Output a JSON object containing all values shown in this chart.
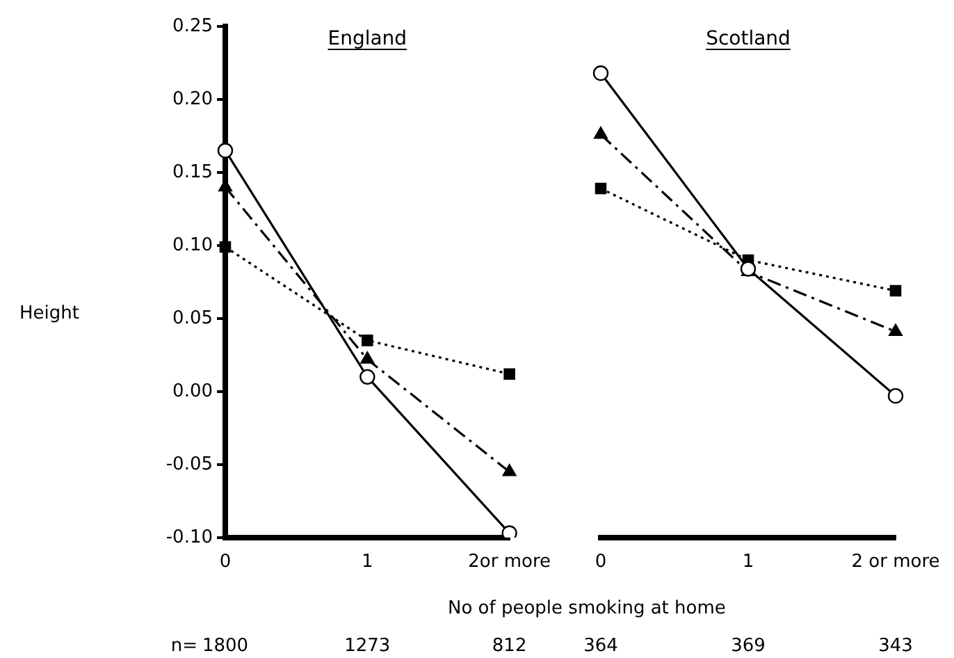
{
  "chart_data": [
    {
      "type": "line",
      "title": "England",
      "ylabel": "Height",
      "xlabel": "No of people smoking at home",
      "categories": [
        "0",
        "1",
        "2or more"
      ],
      "ylim": [
        -0.1,
        0.25
      ],
      "yticks": [
        {
          "value": -0.1,
          "label": "-0.10"
        },
        {
          "value": -0.05,
          "label": "-0.05"
        },
        {
          "value": 0,
          "label": "0.00"
        },
        {
          "value": 0.05,
          "label": "0.05"
        },
        {
          "value": 0.1,
          "label": "0.10"
        },
        {
          "value": 0.15,
          "label": "0.15"
        },
        {
          "value": 0.2,
          "label": "0.20"
        },
        {
          "value": 0.25,
          "label": "0.25"
        }
      ],
      "grid": false,
      "legend": false,
      "series": [
        {
          "color": "#000000",
          "marker": "circle",
          "line_style": "solid",
          "values": [
            0.165,
            0.01,
            -0.097
          ]
        },
        {
          "color": "#000000",
          "marker": "triangle",
          "line_style": "dashed",
          "values": [
            0.14,
            0.022,
            -0.055
          ]
        },
        {
          "color": "#000000",
          "marker": "square",
          "line_style": "dotted",
          "values": [
            0.099,
            0.035,
            0.012
          ]
        }
      ],
      "annotations": [
        "n=",
        "1800",
        "1273",
        "812"
      ]
    },
    {
      "type": "line",
      "title": "Scotland",
      "categories": [
        "0",
        "1",
        "2 or more"
      ],
      "ylim": [
        -0.1,
        0.25
      ],
      "tick_labels": "x",
      "grid": false,
      "legend": false,
      "series": [
        {
          "color": "#000000",
          "marker": "circle",
          "line_style": "solid",
          "values": [
            0.218,
            0.084,
            -0.003
          ]
        },
        {
          "color": "#000000",
          "marker": "triangle",
          "line_style": "dashed",
          "values": [
            0.176,
            0.082,
            0.041
          ]
        },
        {
          "color": "#000000",
          "marker": "square",
          "line_style": "dotted",
          "values": [
            0.139,
            0.09,
            0.069
          ]
        }
      ],
      "annotations": [
        "364",
        "369",
        "343"
      ]
    }
  ]
}
